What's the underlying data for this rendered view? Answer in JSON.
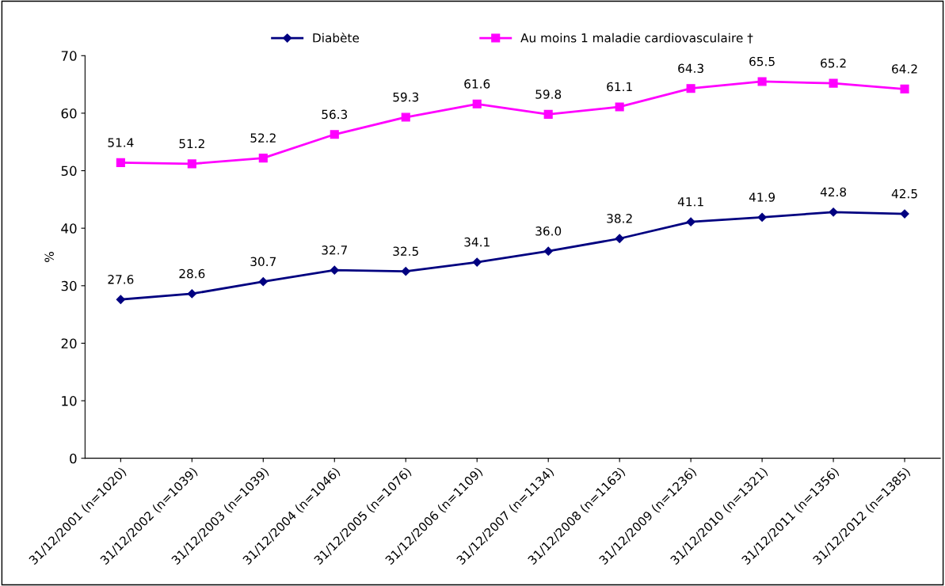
{
  "chart_data": {
    "type": "line",
    "ylabel": "%",
    "categories": [
      "31/12/2001 (n=1020)",
      "31/12/2002 (n=1039)",
      "31/12/2003 (n=1039)",
      "31/12/2004 (n=1046)",
      "31/12/2005 (n=1076)",
      "31/12/2006 (n=1109)",
      "31/12/2007 (n=1134)",
      "31/12/2008 (n=1163)",
      "31/12/2009 (n=1236)",
      "31/12/2010 (n=1321)",
      "31/12/2011 (n=1356)",
      "31/12/2012 (n=1385)"
    ],
    "series": [
      {
        "name": "Diabète",
        "color": "#000080",
        "marker": "diamond",
        "values": [
          27.6,
          28.6,
          30.7,
          32.7,
          32.5,
          34.1,
          36.0,
          38.2,
          41.1,
          41.9,
          42.8,
          42.5
        ],
        "value_labels": [
          "27.6",
          "28.6",
          "30.7",
          "32.7",
          "32.5",
          "34.1",
          "36.0",
          "38.2",
          "41.1",
          "41.9",
          "42.8",
          "42.5"
        ]
      },
      {
        "name": "Au moins 1 maladie cardiovasculaire †",
        "color": "#ff00ff",
        "marker": "square",
        "values": [
          51.4,
          51.2,
          52.2,
          56.3,
          59.3,
          61.6,
          59.8,
          61.1,
          64.3,
          65.5,
          65.2,
          64.2
        ],
        "value_labels": [
          "51.4",
          "51.2",
          "52.2",
          "56.3",
          "59.3",
          "61.6",
          "59.8",
          "61.1",
          "64.3",
          "65.5",
          "65.2",
          "64.2"
        ]
      }
    ],
    "ylim": [
      0,
      70
    ],
    "yticks": [
      0,
      10,
      20,
      30,
      40,
      50,
      60,
      70
    ],
    "grid": false,
    "legend": "top",
    "line_style": "solid"
  }
}
